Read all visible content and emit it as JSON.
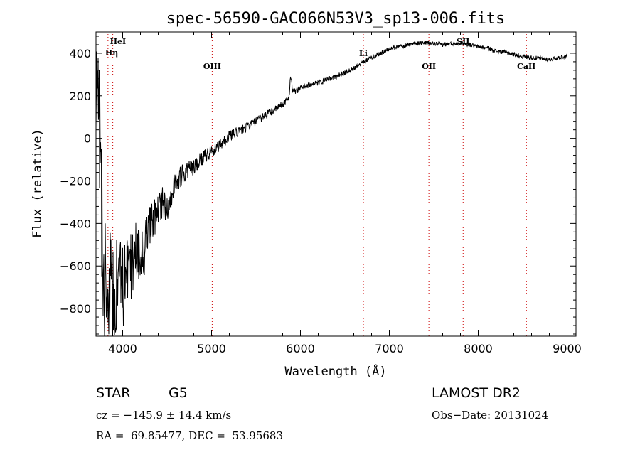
{
  "chart_data": {
    "type": "line",
    "title": "spec-56590-GAC066N53V3_sp13-006.fits",
    "xlabel": "Wavelength (Å)",
    "ylabel": "Flux (relative)",
    "xlim": [
      3700,
      9100
    ],
    "ylim": [
      -930,
      500
    ],
    "xticks": [
      4000,
      5000,
      6000,
      7000,
      8000,
      9000
    ],
    "xtick_labels": [
      "4000",
      "5000",
      "6000",
      "7000",
      "8000",
      "9000"
    ],
    "yticks": [
      -800,
      -600,
      -400,
      -200,
      0,
      200,
      400
    ],
    "ytick_labels": [
      "−800",
      "−600",
      "−400",
      "−200",
      "0",
      "200",
      "400"
    ],
    "grid": false,
    "spectral_lines": [
      {
        "label": "HeI",
        "wavelength": 3889,
        "color": "#cc0000"
      },
      {
        "label": "Hη",
        "wavelength": 3835,
        "color": "#cc0000"
      },
      {
        "label": "OIII",
        "wavelength": 5007,
        "color": "#cc0000"
      },
      {
        "label": "Li",
        "wavelength": 6708,
        "color": "#cc0000"
      },
      {
        "label": "OII",
        "wavelength": 7445,
        "color": "#cc0000"
      },
      {
        "label": "SII",
        "wavelength": 7830,
        "color": "#cc0000"
      },
      {
        "label": "CaII",
        "wavelength": 8542,
        "color": "#cc0000"
      }
    ],
    "series": [
      {
        "x": [
          3700,
          3730,
          3760,
          3790,
          3820,
          3850,
          3880,
          3910,
          3940,
          3970,
          4000,
          4050,
          4100,
          4150,
          4200,
          4250,
          4300,
          4350,
          4400,
          4450,
          4500,
          4600,
          4700,
          4800,
          4900,
          5000,
          5100,
          5200,
          5300,
          5400,
          5500,
          5600,
          5700,
          5800,
          5870,
          5890,
          5910,
          5950,
          6000,
          6100,
          6200,
          6300,
          6400,
          6500,
          6600,
          6700,
          6800,
          6900,
          7000,
          7100,
          7200,
          7300,
          7400,
          7500,
          7600,
          7700,
          7800,
          7900,
          8000,
          8100,
          8200,
          8300,
          8400,
          8500,
          8600,
          8700,
          8800,
          8900,
          9000
        ],
        "y": [
          350,
          150,
          -300,
          -700,
          -550,
          -650,
          -800,
          -750,
          -700,
          -650,
          -700,
          -650,
          -600,
          -500,
          -550,
          -520,
          -420,
          -380,
          -340,
          -300,
          -330,
          -200,
          -160,
          -130,
          -90,
          -60,
          -30,
          10,
          30,
          55,
          80,
          110,
          130,
          160,
          190,
          300,
          230,
          220,
          240,
          250,
          260,
          275,
          290,
          310,
          330,
          360,
          380,
          400,
          420,
          430,
          440,
          445,
          450,
          445,
          440,
          445,
          450,
          440,
          430,
          425,
          410,
          405,
          395,
          385,
          380,
          375,
          370,
          380,
          385
        ],
        "noise": [
          260,
          280,
          300,
          320,
          300,
          300,
          280,
          260,
          240,
          220,
          200,
          180,
          160,
          140,
          130,
          120,
          110,
          100,
          90,
          80,
          70,
          55,
          45,
          40,
          35,
          30,
          28,
          26,
          24,
          22,
          20,
          20,
          18,
          16,
          16,
          18,
          18,
          16,
          15,
          14,
          13,
          12,
          12,
          11,
          11,
          11,
          11,
          11,
          11,
          10,
          10,
          10,
          10,
          10,
          10,
          10,
          10,
          10,
          10,
          10,
          10,
          10,
          10,
          10,
          10,
          10,
          10,
          10,
          10
        ]
      }
    ]
  },
  "info": {
    "object_class": "STAR",
    "subclass": "G5",
    "survey": "LAMOST DR2",
    "cz": "cz = −145.9 ± 14.4 km/s",
    "obs_date": "Obs−Date: 20131024",
    "coords": "RA =  69.85477, DEC =  53.95683"
  }
}
